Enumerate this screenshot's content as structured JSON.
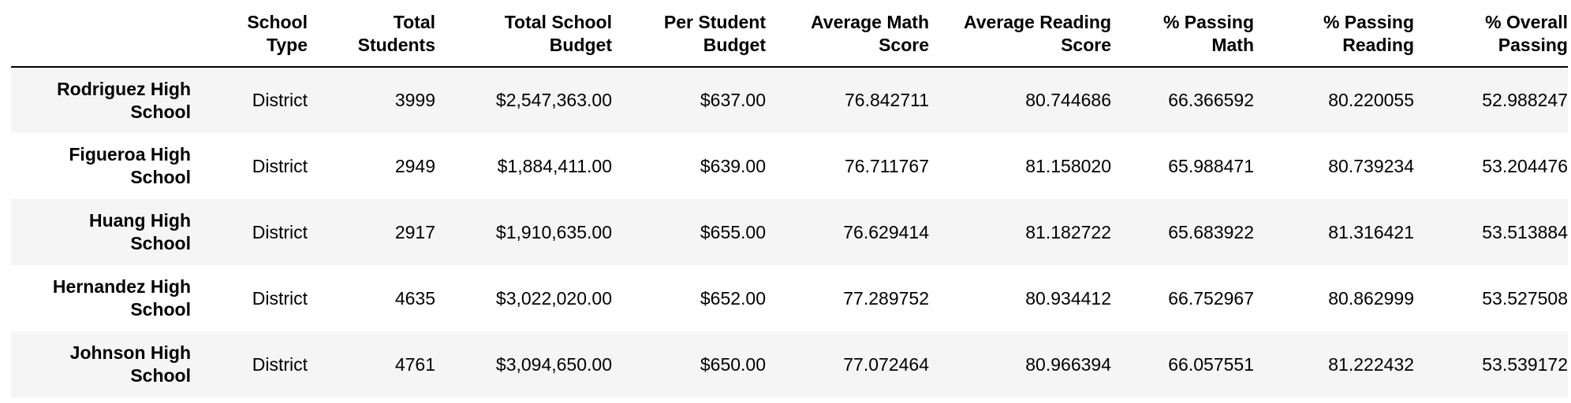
{
  "table": {
    "columns": [
      {
        "line1": "",
        "line2": ""
      },
      {
        "line1": "School",
        "line2": "Type"
      },
      {
        "line1": "Total",
        "line2": "Students"
      },
      {
        "line1": "Total School",
        "line2": "Budget"
      },
      {
        "line1": "Per Student",
        "line2": "Budget"
      },
      {
        "line1": "Average Math",
        "line2": "Score"
      },
      {
        "line1": "Average Reading",
        "line2": "Score"
      },
      {
        "line1": "% Passing",
        "line2": "Math"
      },
      {
        "line1": "% Passing",
        "line2": "Reading"
      },
      {
        "line1": "% Overall",
        "line2": "Passing"
      }
    ],
    "rows": [
      {
        "name_line1": "Rodriguez High",
        "name_line2": "School",
        "school_type": "District",
        "total_students": "3999",
        "total_budget": "$2,547,363.00",
        "per_student_budget": "$637.00",
        "avg_math": "76.842711",
        "avg_reading": "80.744686",
        "pct_math": "66.366592",
        "pct_reading": "80.220055",
        "pct_overall": "52.988247"
      },
      {
        "name_line1": "Figueroa High",
        "name_line2": "School",
        "school_type": "District",
        "total_students": "2949",
        "total_budget": "$1,884,411.00",
        "per_student_budget": "$639.00",
        "avg_math": "76.711767",
        "avg_reading": "81.158020",
        "pct_math": "65.988471",
        "pct_reading": "80.739234",
        "pct_overall": "53.204476"
      },
      {
        "name_line1": "Huang High",
        "name_line2": "School",
        "school_type": "District",
        "total_students": "2917",
        "total_budget": "$1,910,635.00",
        "per_student_budget": "$655.00",
        "avg_math": "76.629414",
        "avg_reading": "81.182722",
        "pct_math": "65.683922",
        "pct_reading": "81.316421",
        "pct_overall": "53.513884"
      },
      {
        "name_line1": "Hernandez High",
        "name_line2": "School",
        "school_type": "District",
        "total_students": "4635",
        "total_budget": "$3,022,020.00",
        "per_student_budget": "$652.00",
        "avg_math": "77.289752",
        "avg_reading": "80.934412",
        "pct_math": "66.752967",
        "pct_reading": "80.862999",
        "pct_overall": "53.527508"
      },
      {
        "name_line1": "Johnson High",
        "name_line2": "School",
        "school_type": "District",
        "total_students": "4761",
        "total_budget": "$3,094,650.00",
        "per_student_budget": "$650.00",
        "avg_math": "77.072464",
        "avg_reading": "80.966394",
        "pct_math": "66.057551",
        "pct_reading": "81.222432",
        "pct_overall": "53.539172"
      }
    ]
  }
}
